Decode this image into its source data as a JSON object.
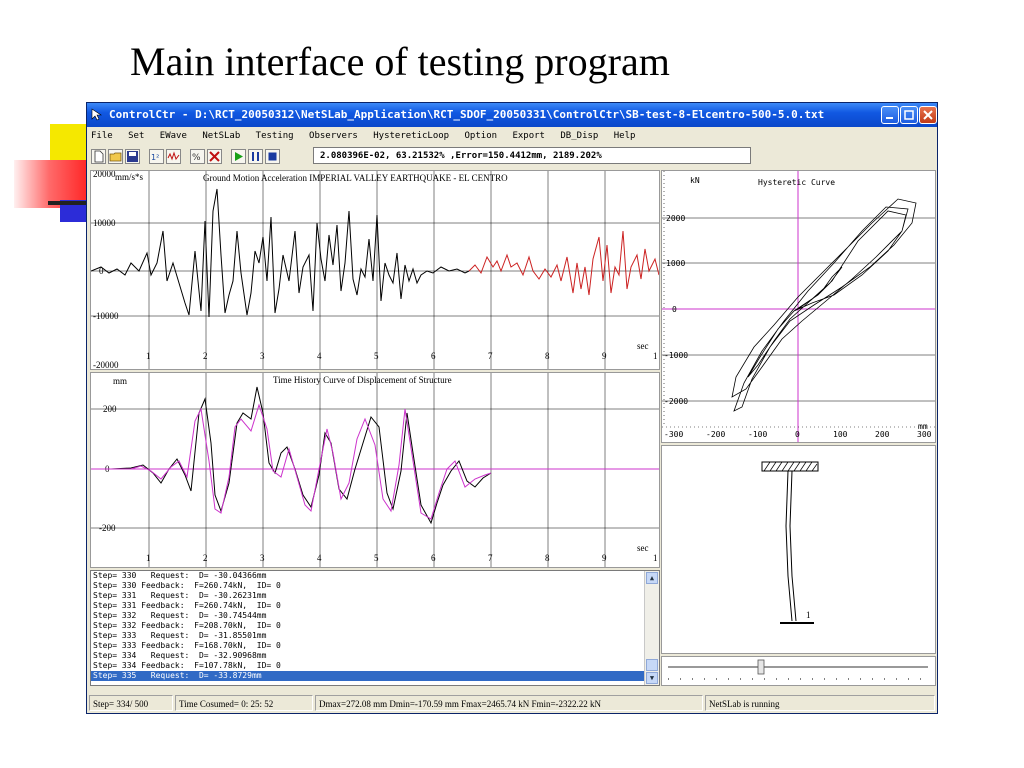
{
  "slide": {
    "title": "Main interface of testing program"
  },
  "window": {
    "title": "ControlCtr - D:\\RCT_20050312\\NetSLab_Application\\RCT_SDOF_20050331\\ControlCtr\\SB-test-8-Elcentro-500-5.0.txt",
    "menu": [
      "File",
      "Set",
      "EWave",
      "NetSLab",
      "Testing",
      "Observers",
      "HystereticLoop",
      "Option",
      "Export",
      "DB_Disp",
      "Help"
    ],
    "toolbar_icons": [
      "new-file-icon",
      "open-folder-icon",
      "save-icon",
      "series-icon",
      "wave-icon",
      "percent-icon",
      "delete-icon",
      "play-icon",
      "pause-icon",
      "stop-icon"
    ],
    "readout": "2.080396E-02, 63.21532%  ,Error=150.4412mm, 2189.202%"
  },
  "accel_chart": {
    "title": "Ground Motion Acceleration IMPERIAL VALLEY EARTHQUAKE - EL CENTRO",
    "unit": "mm/s*s",
    "y_ticks": [
      "20000",
      "10000",
      "0",
      "-10000",
      "-20000"
    ],
    "x_ticks": [
      "1",
      "2",
      "3",
      "4",
      "5",
      "6",
      "7",
      "8",
      "9",
      "1"
    ],
    "x_unit": "sec"
  },
  "disp_chart": {
    "title": "Time History Curve of Displacement of Structure",
    "unit": "mm",
    "y_ticks": [
      "200",
      "0",
      "-200"
    ],
    "x_ticks": [
      "1",
      "2",
      "3",
      "4",
      "5",
      "6",
      "7",
      "8",
      "9",
      "1"
    ],
    "x_unit": "sec"
  },
  "hyst_chart": {
    "title": "Hysteretic Curve",
    "unit": "kN",
    "y_ticks": [
      "2000",
      "1000",
      "0",
      "-1000",
      "-2000"
    ],
    "x_ticks": [
      "-300",
      "-200",
      "-100",
      "0",
      "100",
      "200",
      "300"
    ],
    "x_unit": "mm"
  },
  "structure": {
    "node_label": "1"
  },
  "log": [
    "Step= 330   Request:  D= -30.04366mm",
    "Step= 330 Feedback:  F=260.74kN,  ID= 0",
    "Step= 331   Request:  D= -30.26231mm",
    "Step= 331 Feedback:  F=260.74kN,  ID= 0",
    "Step= 332   Request:  D= -30.74544mm",
    "Step= 332 Feedback:  F=208.70kN,  ID= 0",
    "Step= 333   Request:  D= -31.85501mm",
    "Step= 333 Feedback:  F=168.70kN,  ID= 0",
    "Step= 334   Request:  D= -32.90968mm",
    "Step= 334 Feedback:  F=107.78kN,  ID= 0",
    "Step= 335   Request:  D= -33.8729mm"
  ],
  "status": {
    "step": "Step= 334/ 500",
    "time": "Time Cosumed=  0: 25: 52",
    "extremes": "Dmax=272.08 mm  Dmin=-170.59 mm  Fmax=2465.74 kN  Fmin=-2322.22 kN",
    "state": "NetSLab is running"
  },
  "colors": {
    "title_bar": "#0a47c9",
    "ref_line": "#cc33cc",
    "record_tail": "#cc2222",
    "selection": "#316ac5"
  }
}
